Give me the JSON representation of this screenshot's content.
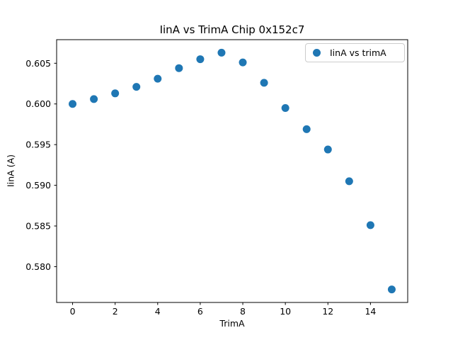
{
  "chart_data": {
    "type": "scatter",
    "title": "IinA vs TrimA Chip 0x152c7",
    "xlabel": "TrimA",
    "ylabel": "IinA (A)",
    "legend": {
      "position": "upper right",
      "entries": [
        "IinA vs trimA"
      ]
    },
    "marker_color": "#1f77b4",
    "grid": false,
    "x": [
      0,
      1,
      2,
      3,
      4,
      5,
      6,
      7,
      8,
      9,
      10,
      11,
      12,
      13,
      14,
      15
    ],
    "y": [
      0.6,
      0.6006,
      0.6013,
      0.6021,
      0.6031,
      0.6044,
      0.6055,
      0.6063,
      0.6051,
      0.6026,
      0.5995,
      0.5969,
      0.5944,
      0.5905,
      0.5851,
      0.5772
    ],
    "xlim": [
      -0.75,
      15.75
    ],
    "ylim": [
      0.5756,
      0.6079
    ],
    "xticks": [
      0,
      2,
      4,
      6,
      8,
      10,
      12,
      14
    ],
    "xtick_labels": [
      "0",
      "2",
      "4",
      "6",
      "8",
      "10",
      "12",
      "14"
    ],
    "yticks": [
      0.58,
      0.585,
      0.59,
      0.595,
      0.6,
      0.605
    ],
    "ytick_labels": [
      "0.580",
      "0.585",
      "0.590",
      "0.595",
      "0.600",
      "0.605"
    ]
  }
}
